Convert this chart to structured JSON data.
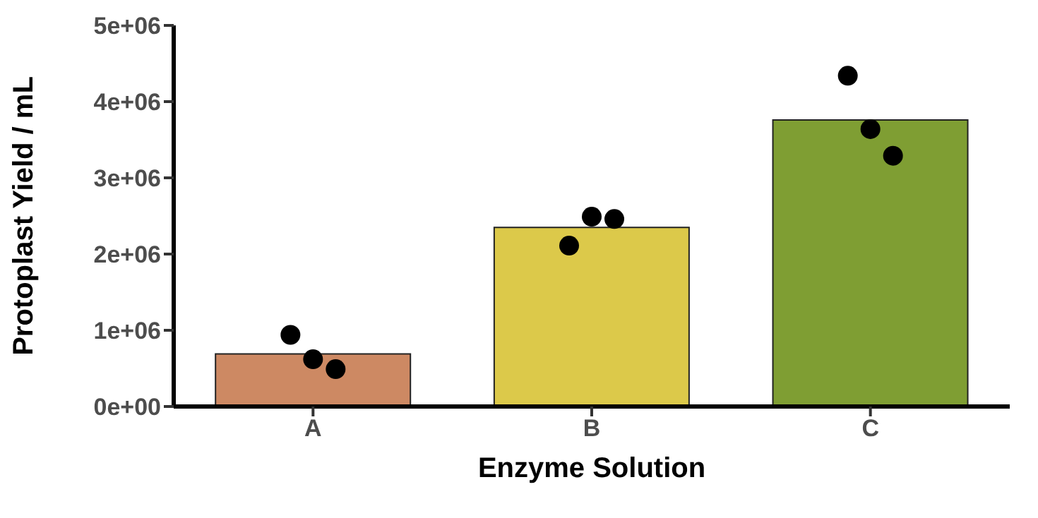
{
  "chart_data": {
    "type": "bar",
    "xlabel": "Enzyme Solution",
    "ylabel": "Protoplast Yield / mL",
    "categories": [
      "A",
      "B",
      "C"
    ],
    "series": [
      {
        "values": [
          690000,
          2350000,
          3760000
        ],
        "colors": [
          "#cd8963",
          "#dcc94a",
          "#7f9e33"
        ]
      },
      {
        "type": "scatter",
        "color": "#000000",
        "x": [
          "A",
          "A",
          "A",
          "B",
          "B",
          "B",
          "C",
          "C",
          "C"
        ],
        "values": [
          940000,
          620000,
          490000,
          2110000,
          2490000,
          2460000,
          4340000,
          3640000,
          3290000
        ]
      }
    ],
    "ylim": [
      0,
      5000000
    ],
    "yticks": [
      {
        "value": 0,
        "label": "0e+00"
      },
      {
        "value": 1000000,
        "label": "1e+06"
      },
      {
        "value": 2000000,
        "label": "2e+06"
      },
      {
        "value": 3000000,
        "label": "3e+06"
      },
      {
        "value": 4000000,
        "label": "4e+06"
      },
      {
        "value": 5000000,
        "label": "5e+06"
      }
    ],
    "grid": false,
    "legend": false
  }
}
